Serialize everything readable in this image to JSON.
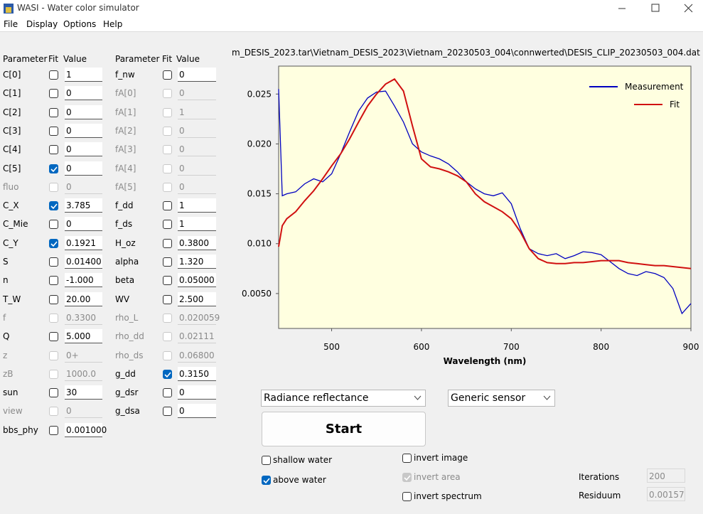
{
  "window": {
    "title": "WASI - Water color simulator",
    "menu": [
      "File",
      "Display",
      "Options",
      "Help"
    ]
  },
  "parameters": {
    "headers": [
      "Parameter",
      "Fit",
      "Value"
    ],
    "columns": [
      [
        {
          "name": "C[0]",
          "fit": false,
          "enabled": true,
          "value": "1"
        },
        {
          "name": "C[1]",
          "fit": false,
          "enabled": true,
          "value": "0"
        },
        {
          "name": "C[2]",
          "fit": false,
          "enabled": true,
          "value": "0"
        },
        {
          "name": "C[3]",
          "fit": false,
          "enabled": true,
          "value": "0"
        },
        {
          "name": "C[4]",
          "fit": false,
          "enabled": true,
          "value": "0"
        },
        {
          "name": "C[5]",
          "fit": true,
          "enabled": true,
          "value": "0"
        },
        {
          "name": "fluo",
          "fit": false,
          "enabled": false,
          "value": "0"
        },
        {
          "name": "C_X",
          "fit": true,
          "enabled": true,
          "value": "3.785"
        },
        {
          "name": "C_Mie",
          "fit": false,
          "enabled": true,
          "value": "0"
        },
        {
          "name": "C_Y",
          "fit": true,
          "enabled": true,
          "value": "0.1921"
        },
        {
          "name": "S",
          "fit": false,
          "enabled": true,
          "value": "0.01400"
        },
        {
          "name": "n",
          "fit": false,
          "enabled": true,
          "value": "-1.000"
        },
        {
          "name": "T_W",
          "fit": false,
          "enabled": true,
          "value": "20.00"
        },
        {
          "name": "f",
          "fit": false,
          "enabled": false,
          "value": "0.3300"
        },
        {
          "name": "Q",
          "fit": false,
          "enabled": true,
          "value": "5.000"
        },
        {
          "name": "z",
          "fit": false,
          "enabled": false,
          "value": "0+"
        },
        {
          "name": "zB",
          "fit": false,
          "enabled": false,
          "value": "1000.0"
        },
        {
          "name": "sun",
          "fit": false,
          "enabled": true,
          "value": "30"
        },
        {
          "name": "view",
          "fit": false,
          "enabled": false,
          "value": "0"
        },
        {
          "name": "bbs_phy",
          "fit": false,
          "enabled": true,
          "value": "0.001000"
        }
      ],
      [
        {
          "name": "f_nw",
          "fit": false,
          "enabled": true,
          "value": "0"
        },
        {
          "name": "fA[0]",
          "fit": false,
          "enabled": false,
          "value": "0"
        },
        {
          "name": "fA[1]",
          "fit": false,
          "enabled": false,
          "value": "1"
        },
        {
          "name": "fA[2]",
          "fit": false,
          "enabled": false,
          "value": "0"
        },
        {
          "name": "fA[3]",
          "fit": false,
          "enabled": false,
          "value": "0"
        },
        {
          "name": "fA[4]",
          "fit": false,
          "enabled": false,
          "value": "0"
        },
        {
          "name": "fA[5]",
          "fit": false,
          "enabled": false,
          "value": "0"
        },
        {
          "name": "f_dd",
          "fit": false,
          "enabled": true,
          "value": "1"
        },
        {
          "name": "f_ds",
          "fit": false,
          "enabled": true,
          "value": "1"
        },
        {
          "name": "H_oz",
          "fit": false,
          "enabled": true,
          "value": "0.3800"
        },
        {
          "name": "alpha",
          "fit": false,
          "enabled": true,
          "value": "1.320"
        },
        {
          "name": "beta",
          "fit": false,
          "enabled": true,
          "value": "0.05000"
        },
        {
          "name": "WV",
          "fit": false,
          "enabled": true,
          "value": "2.500"
        },
        {
          "name": "rho_L",
          "fit": false,
          "enabled": false,
          "value": "0.020059"
        },
        {
          "name": "rho_dd",
          "fit": false,
          "enabled": false,
          "value": "0.02111"
        },
        {
          "name": "rho_ds",
          "fit": false,
          "enabled": false,
          "value": "0.06800"
        },
        {
          "name": "g_dd",
          "fit": true,
          "enabled": true,
          "value": "0.3150"
        },
        {
          "name": "g_dsr",
          "fit": false,
          "enabled": true,
          "value": "0"
        },
        {
          "name": "g_dsa",
          "fit": false,
          "enabled": true,
          "value": "0"
        }
      ]
    ]
  },
  "chart_data": {
    "type": "line",
    "title": "m_DESIS_2023.tar\\Vietnam_DESIS_2023\\Vietnam_20230503_004\\connwerted\\DESIS_CLIP_20230503_004.dat",
    "x_label": "Wavelength (nm)",
    "x": [
      441,
      445,
      450,
      460,
      470,
      480,
      490,
      500,
      510,
      520,
      530,
      540,
      550,
      560,
      570,
      580,
      590,
      600,
      610,
      620,
      630,
      640,
      650,
      660,
      670,
      680,
      690,
      700,
      710,
      720,
      730,
      740,
      750,
      760,
      770,
      780,
      790,
      800,
      810,
      820,
      830,
      840,
      850,
      860,
      870,
      880,
      890,
      900
    ],
    "series": [
      {
        "name": "Measurement",
        "color": "#0000c0",
        "values": [
          0.0255,
          0.0148,
          0.015,
          0.0152,
          0.016,
          0.0165,
          0.0162,
          0.017,
          0.019,
          0.0212,
          0.0233,
          0.0246,
          0.0252,
          0.0253,
          0.0238,
          0.0222,
          0.02,
          0.0192,
          0.0188,
          0.0185,
          0.018,
          0.0172,
          0.0162,
          0.0155,
          0.015,
          0.0148,
          0.0151,
          0.014,
          0.0115,
          0.0095,
          0.009,
          0.0088,
          0.009,
          0.0085,
          0.0088,
          0.0092,
          0.0091,
          0.0089,
          0.0082,
          0.0075,
          0.007,
          0.0068,
          0.0072,
          0.007,
          0.0066,
          0.0055,
          0.003,
          0.004
        ]
      },
      {
        "name": "Fit",
        "color": "#d01010",
        "values": [
          0.0097,
          0.0118,
          0.0125,
          0.0132,
          0.0143,
          0.0153,
          0.0165,
          0.0178,
          0.019,
          0.0205,
          0.0222,
          0.0238,
          0.025,
          0.026,
          0.0265,
          0.0253,
          0.0218,
          0.0185,
          0.0177,
          0.0175,
          0.0172,
          0.0168,
          0.0162,
          0.015,
          0.0142,
          0.0137,
          0.0132,
          0.0125,
          0.0112,
          0.0095,
          0.0085,
          0.0081,
          0.008,
          0.008,
          0.0081,
          0.0081,
          0.0082,
          0.0083,
          0.0083,
          0.0083,
          0.0081,
          0.008,
          0.0079,
          0.0078,
          0.0078,
          0.0077,
          0.0076,
          0.0075
        ]
      }
    ],
    "xlim": [
      441,
      900
    ],
    "ylim": [
      0.0015,
      0.0278
    ],
    "xticks": [
      500,
      600,
      700,
      800,
      900
    ],
    "yticks": [
      {
        "value": 0.005,
        "label": "0.0050"
      },
      {
        "value": 0.01,
        "label": "0.010"
      },
      0.015,
      {
        "value": 0.02,
        "label": "0.020"
      },
      0.025
    ],
    "legend": "upper right",
    "background": "#ffffe0"
  },
  "controls": {
    "mode": "Radiance reflectance",
    "sensor": "Generic sensor",
    "start": "Start",
    "options": [
      {
        "label": "shallow water",
        "checked": false,
        "enabled": true
      },
      {
        "label": "above water",
        "checked": true,
        "enabled": true
      },
      {
        "label": "invert image",
        "checked": false,
        "enabled": true
      },
      {
        "label": "invert area",
        "checked": true,
        "enabled": false
      },
      {
        "label": "invert spectrum",
        "checked": false,
        "enabled": true
      }
    ],
    "status": [
      {
        "label": "Iterations",
        "value": "200"
      },
      {
        "label": "Residuum",
        "value": "0.00157"
      }
    ]
  }
}
